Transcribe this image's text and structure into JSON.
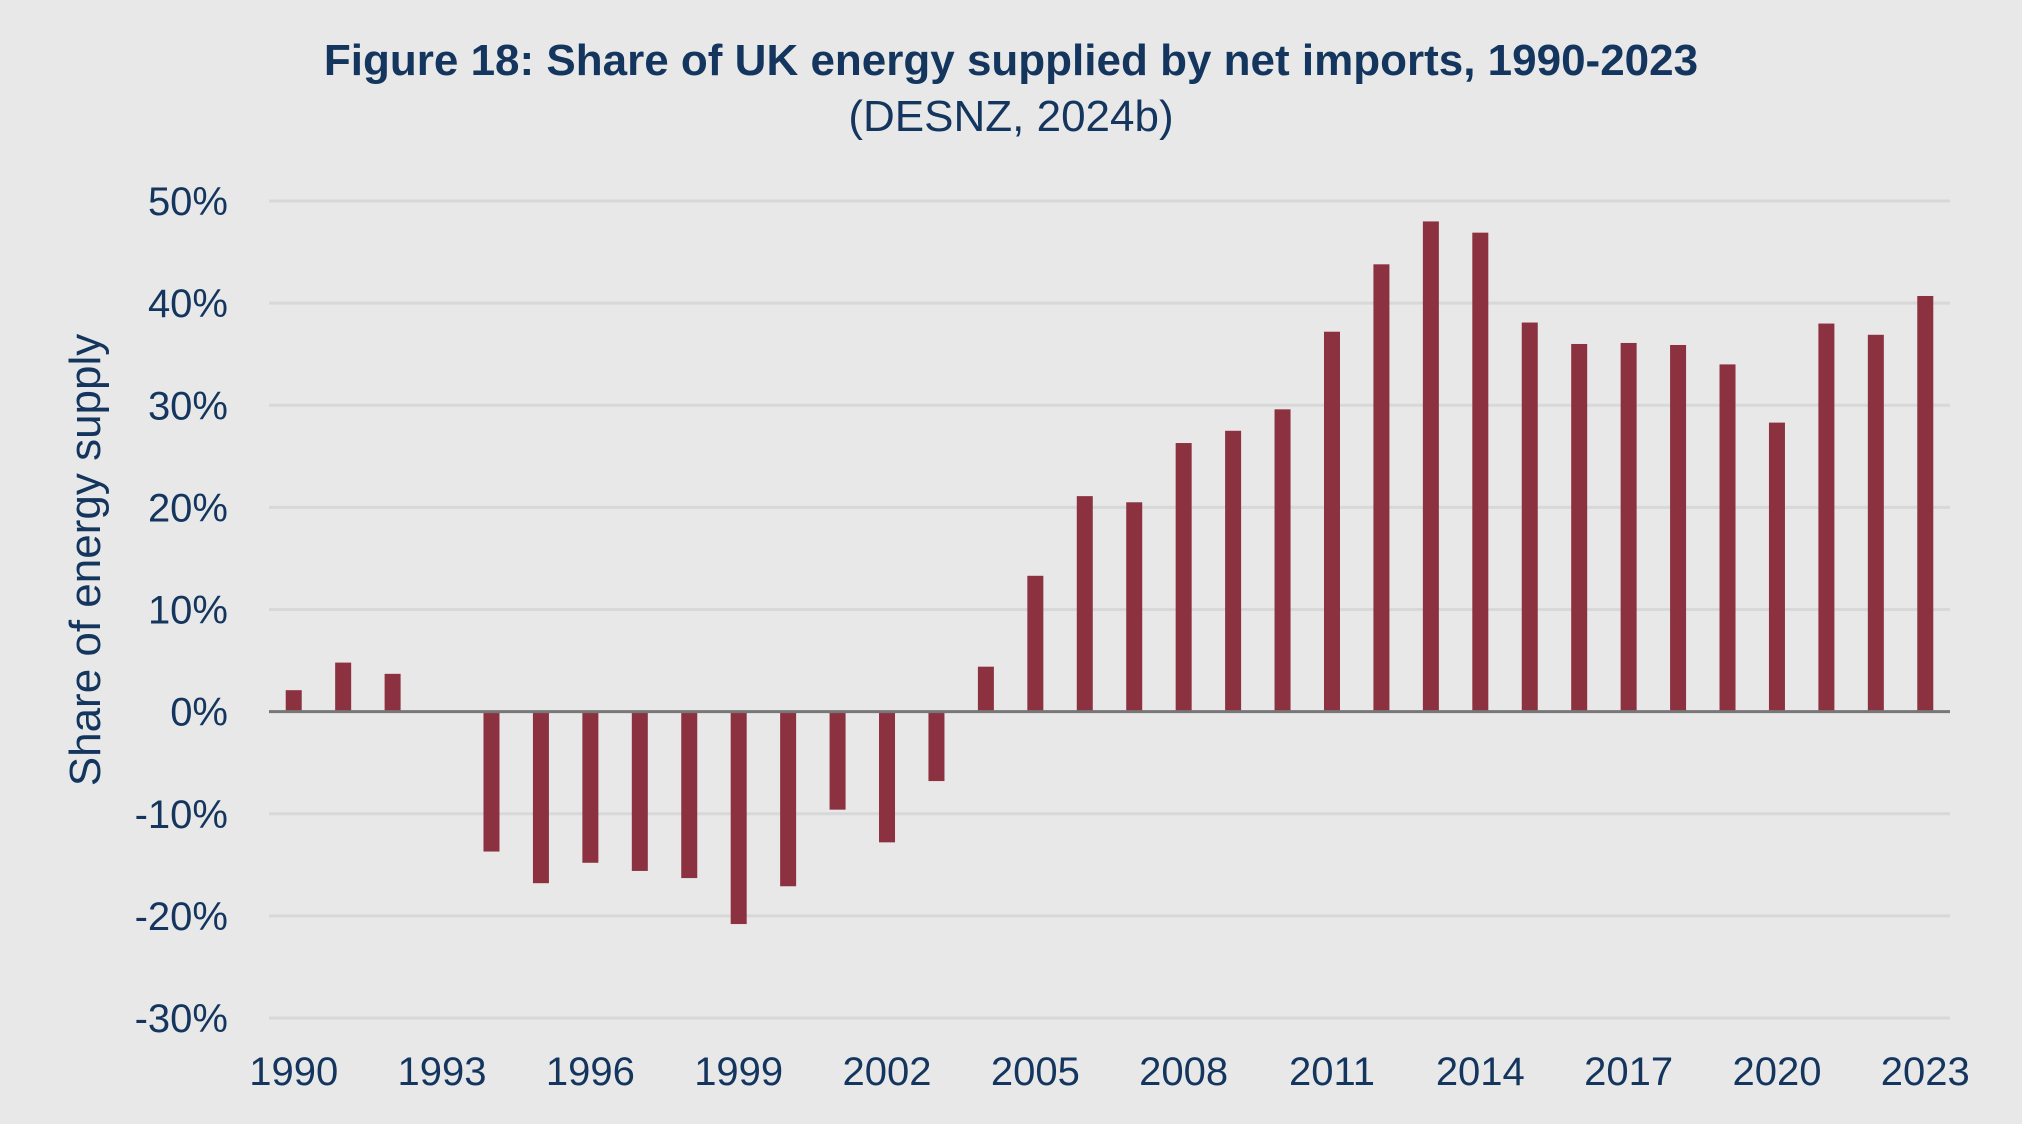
{
  "chart_data": {
    "type": "bar",
    "title": "Figure 18: Share of UK energy supplied by net imports, 1990-2023",
    "subtitle": "(DESNZ, 2024b)",
    "xlabel": "",
    "ylabel": "Share of energy supply",
    "ylim": [
      -30,
      50
    ],
    "yticks": [
      50,
      40,
      30,
      20,
      10,
      0,
      -10,
      -20,
      -30
    ],
    "ytick_labels": [
      "50%",
      "40%",
      "30%",
      "20%",
      "10%",
      "0%",
      "-10%",
      "-20%",
      "-30%"
    ],
    "xtick_labels": [
      "1990",
      "1993",
      "1996",
      "1999",
      "2002",
      "2005",
      "2008",
      "2011",
      "2014",
      "2017",
      "2020",
      "2023"
    ],
    "grid": true,
    "legend": "none",
    "bar_color": "#8b3140",
    "categories": [
      "1990",
      "1991",
      "1992",
      "1993",
      "1994",
      "1995",
      "1996",
      "1997",
      "1998",
      "1999",
      "2000",
      "2001",
      "2002",
      "2003",
      "2004",
      "2005",
      "2006",
      "2007",
      "2008",
      "2009",
      "2010",
      "2011",
      "2012",
      "2013",
      "2014",
      "2015",
      "2016",
      "2017",
      "2018",
      "2019",
      "2020",
      "2021",
      "2022",
      "2023"
    ],
    "values": [
      2.1,
      4.8,
      3.7,
      -0.1,
      -13.7,
      -16.8,
      -14.8,
      -15.6,
      -16.3,
      -20.8,
      -17.1,
      -9.6,
      -12.8,
      -6.8,
      4.4,
      13.3,
      21.1,
      20.5,
      26.3,
      27.5,
      29.6,
      37.2,
      43.8,
      48.0,
      46.9,
      38.1,
      36.0,
      36.1,
      35.9,
      34.0,
      28.3,
      38.0,
      36.9,
      40.7
    ]
  }
}
